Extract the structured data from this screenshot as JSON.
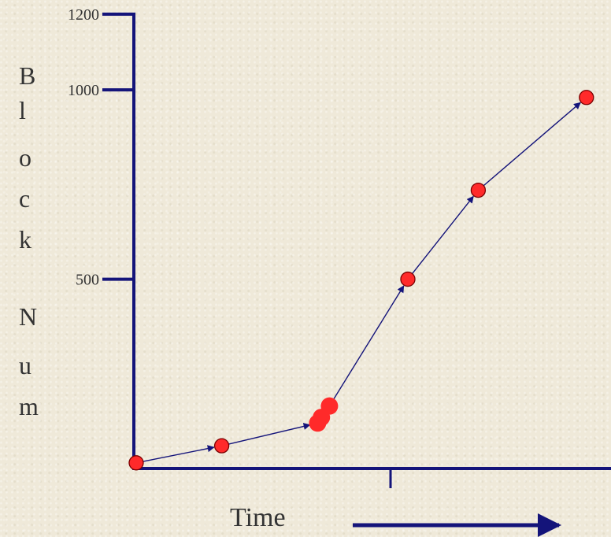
{
  "chart_data": {
    "type": "line",
    "xlabel": "Time",
    "ylabel": "Block Num",
    "ylabel_letters": [
      "B",
      "l",
      "o",
      "c",
      "k",
      "",
      "N",
      "u",
      "m"
    ],
    "yticks": [
      {
        "value": 500,
        "label": "500"
      },
      {
        "value": 1000,
        "label": "1000"
      },
      {
        "value": 1200,
        "label": "1200"
      }
    ],
    "ylim": [
      0,
      1200
    ],
    "xlim": [
      0,
      100
    ],
    "grid": false,
    "series": [
      {
        "x": [
          0.5,
          18.6,
          38.9,
          39.7,
          41.4,
          58.0,
          72.9,
          95.8
        ],
        "y": [
          15,
          60,
          120,
          135,
          165,
          500,
          735,
          980
        ]
      }
    ],
    "colors": {
      "axis": "#14147a",
      "arrow": "#14147a",
      "point_fill": "#ff2a2a",
      "point_stroke": "#7a0000",
      "text": "#333333"
    }
  }
}
